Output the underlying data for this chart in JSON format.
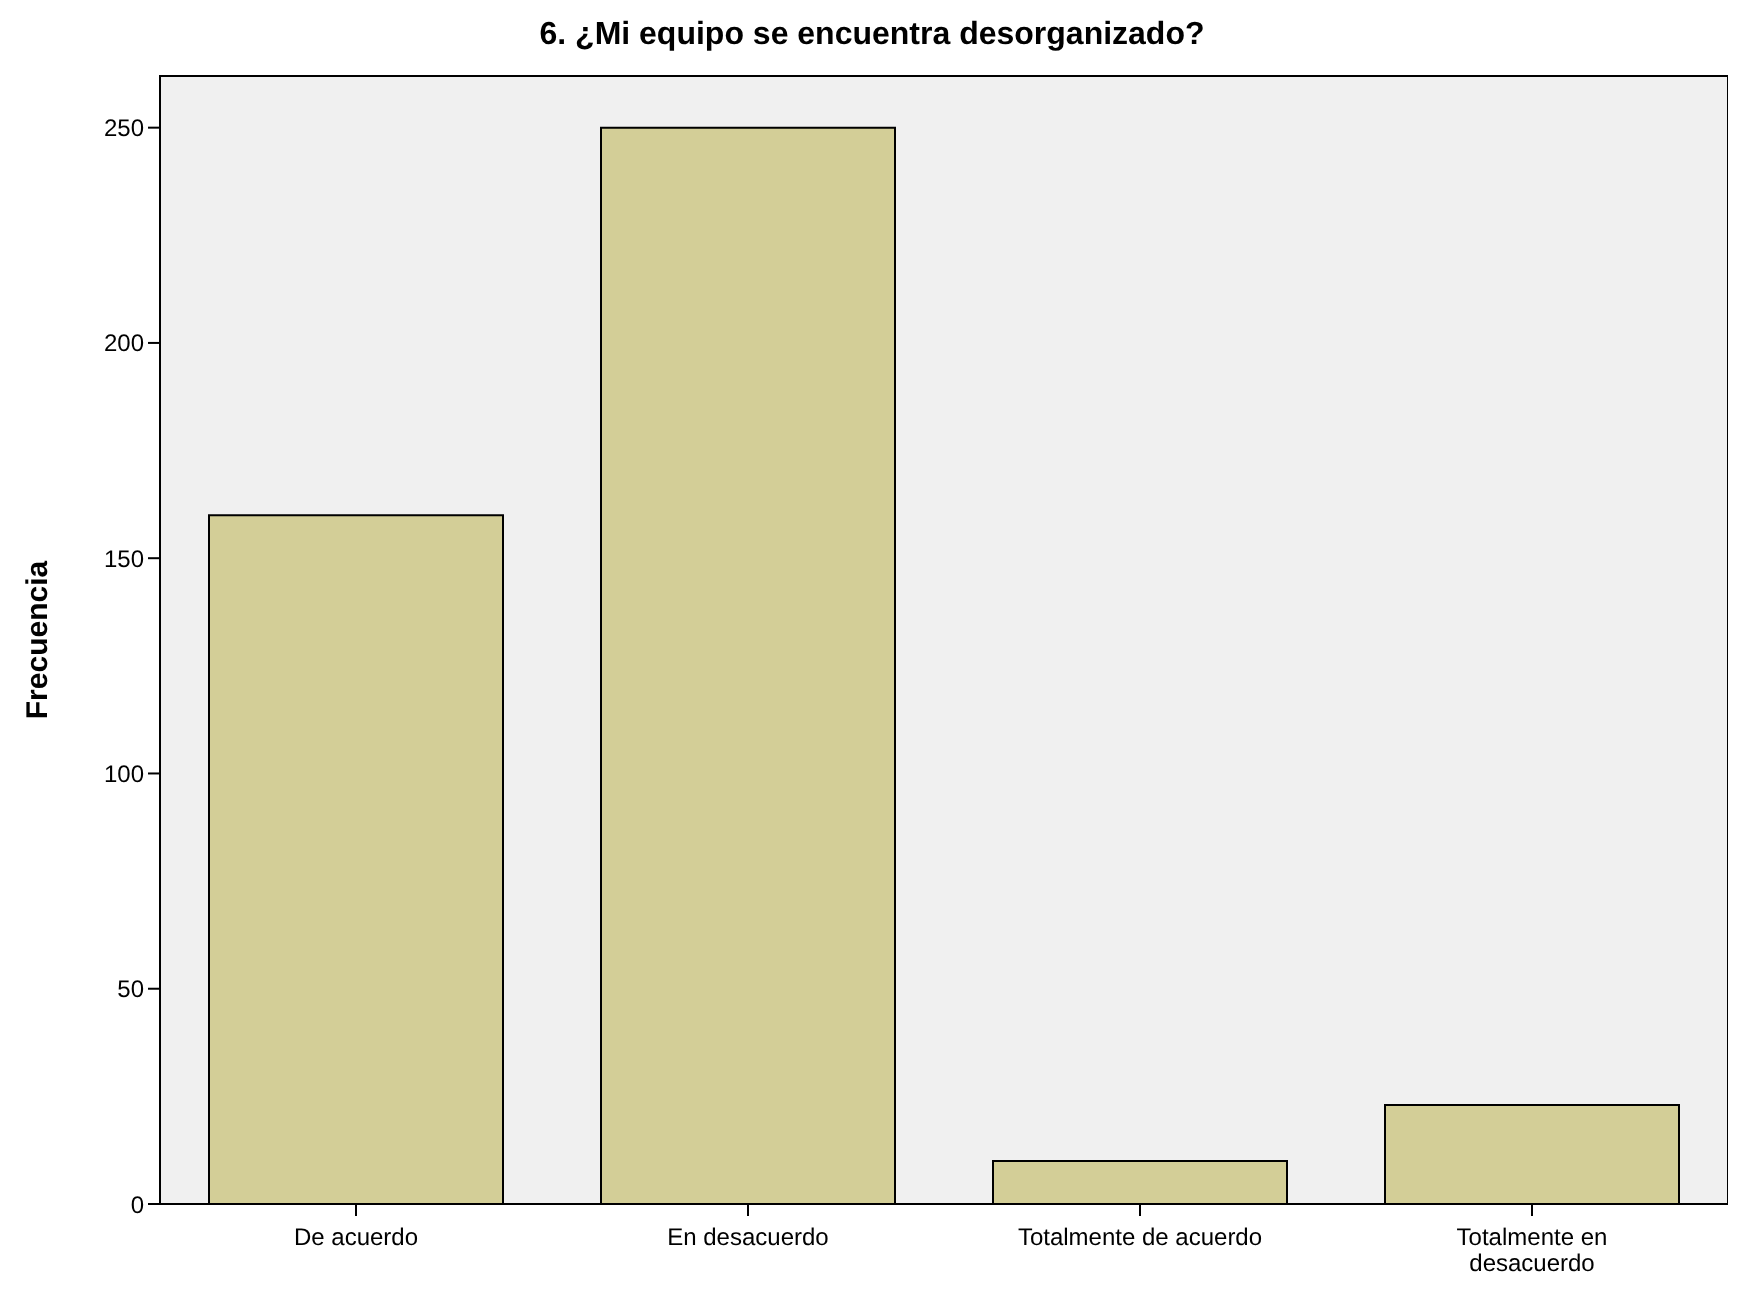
{
  "chart_data": {
    "type": "bar",
    "title": "6. ¿Mi equipo se encuentra desorganizado?",
    "ylabel": "Frecuencia",
    "categories": [
      "De acuerdo",
      "En desacuerdo",
      "Totalmente de acuerdo",
      "Totalmente en desacuerdo"
    ],
    "values": [
      160,
      250,
      10,
      23
    ],
    "color": "#d3ce97",
    "ylim": [
      0,
      262
    ],
    "yticks": [
      0,
      50,
      100,
      150,
      200,
      250
    ]
  }
}
